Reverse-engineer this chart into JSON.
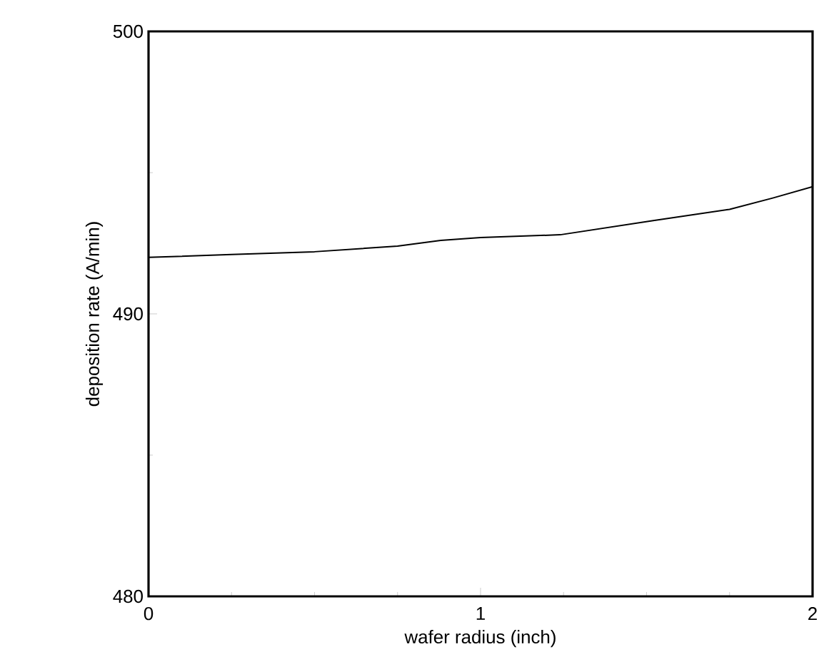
{
  "chart_data": {
    "type": "line",
    "xlabel": "wafer radius (inch)",
    "ylabel": "deposition rate (A/min)",
    "x": [
      0,
      0.25,
      0.5,
      0.75,
      0.88,
      1.0,
      1.24,
      1.52,
      1.75,
      1.88,
      2.0
    ],
    "series": [
      {
        "color": "#000000",
        "values": [
          492.0,
          492.1,
          492.2,
          492.4,
          492.6,
          492.7,
          492.8,
          493.3,
          493.7,
          494.1,
          494.5
        ]
      }
    ],
    "xlim": [
      0,
      2
    ],
    "ylim": [
      480,
      500
    ],
    "xticks": [
      0,
      1,
      2
    ],
    "yticks": [
      480,
      490,
      500
    ],
    "marker": "none",
    "line_style": "solid",
    "grid": false
  }
}
